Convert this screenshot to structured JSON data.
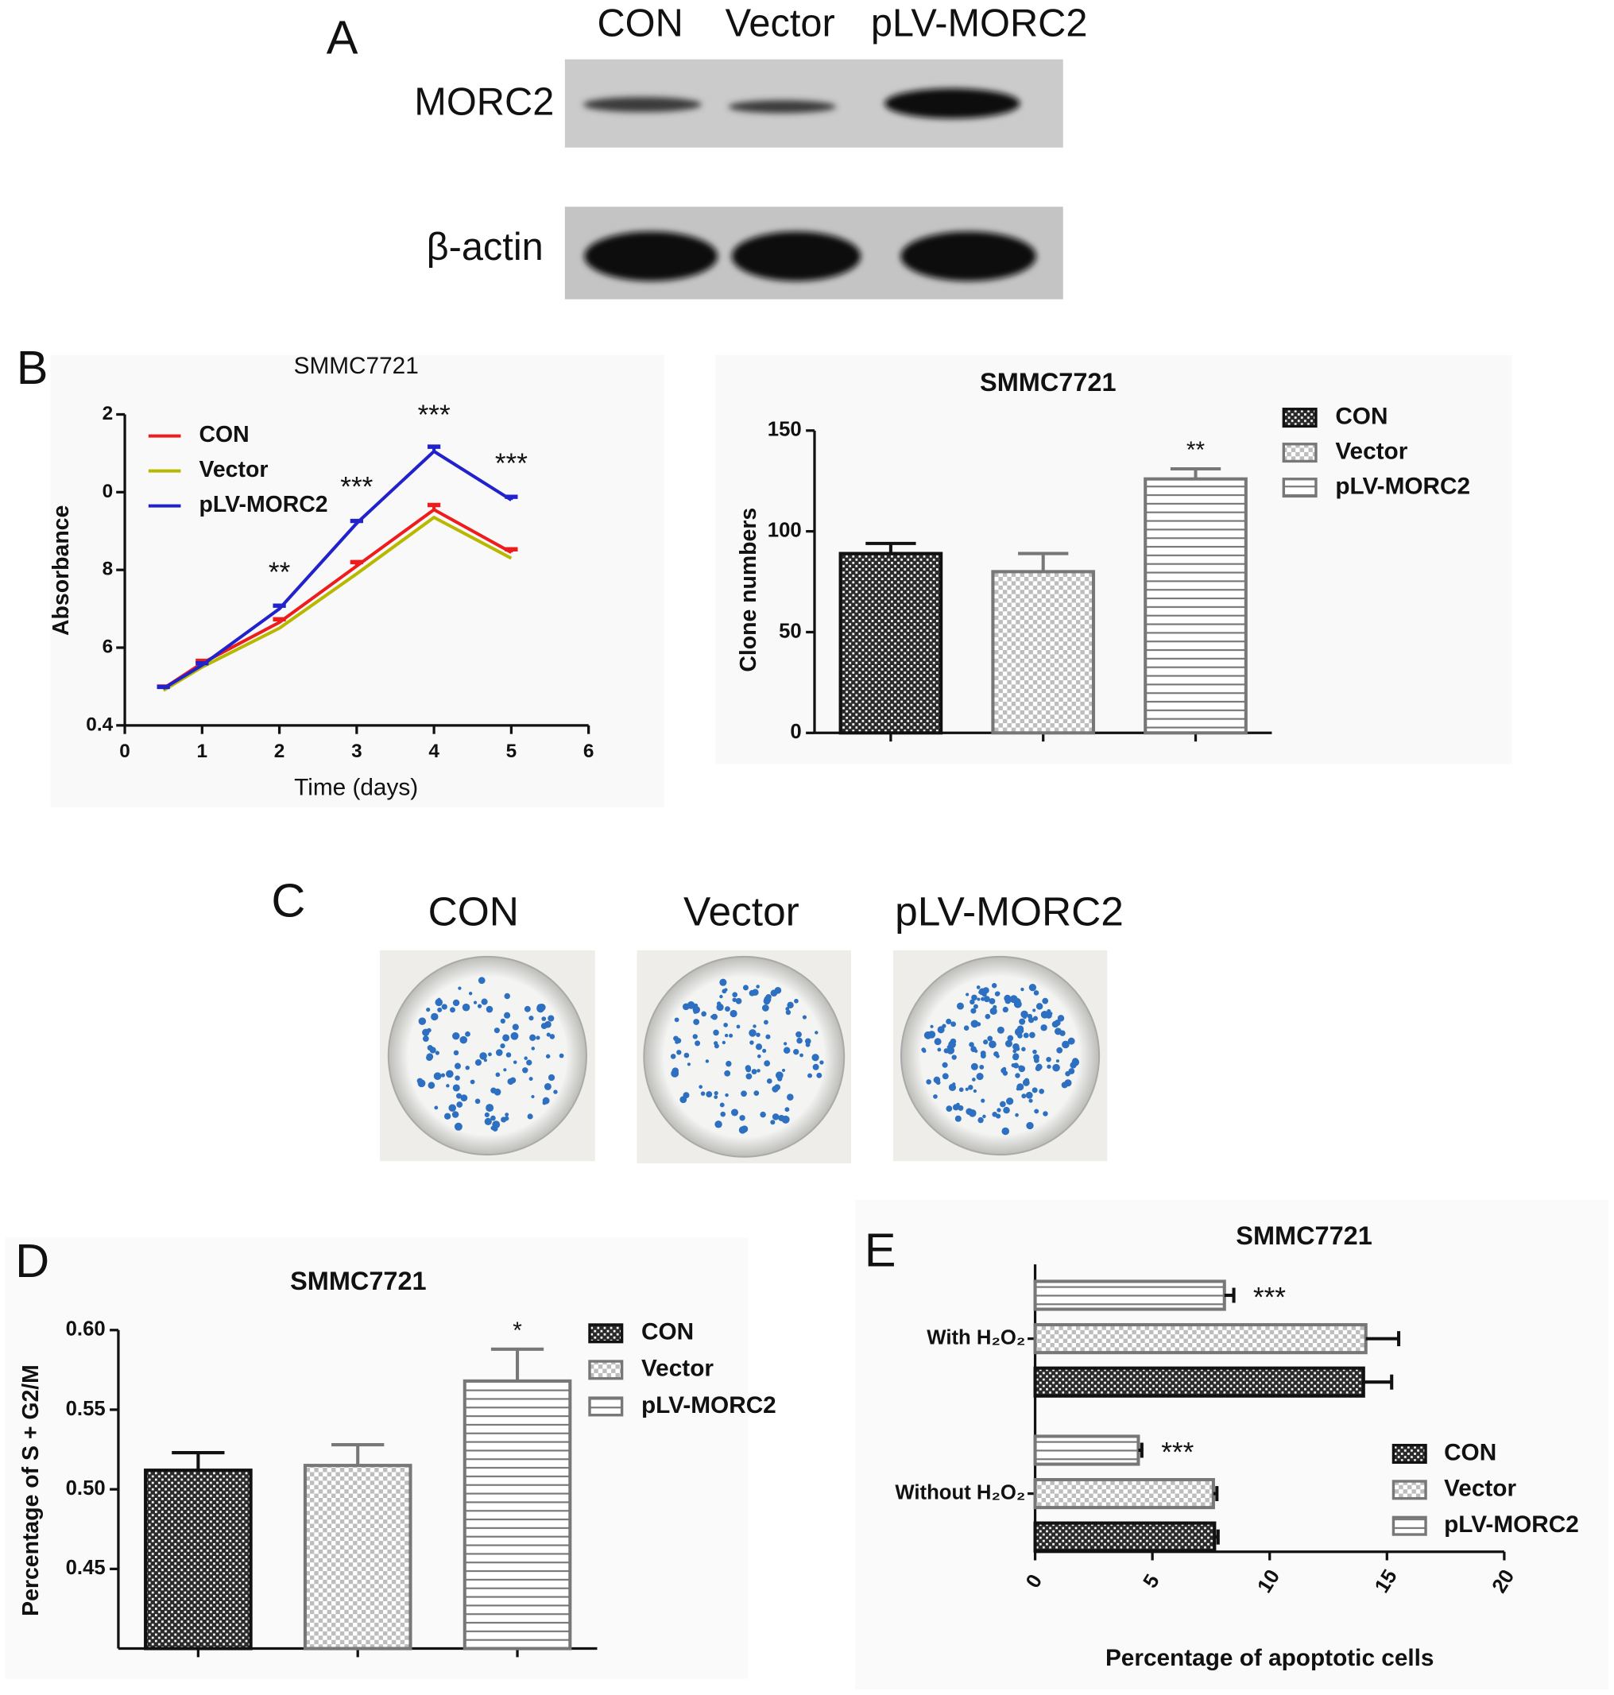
{
  "panel_labels": [
    "A",
    "B",
    "C",
    "D",
    "E"
  ],
  "western_blot": {
    "lanes": [
      "CON",
      "Vector",
      "pLV-MORC2"
    ],
    "rows": [
      "MORC2",
      "β-actin"
    ]
  },
  "colony_plates": {
    "labels": [
      "CON",
      "Vector",
      "pLV-MORC2"
    ]
  },
  "chart_data": [
    {
      "type": "line",
      "title": "SMMC7721",
      "xlabel": "Time (days)",
      "ylabel": "Absorbance",
      "x": [
        0.5,
        1,
        2,
        3,
        4,
        5
      ],
      "xlim": [
        0,
        6
      ],
      "xticks": [
        0,
        1,
        2,
        3,
        4,
        5,
        6
      ],
      "ylim": [
        0.4,
        1.2
      ],
      "yticks": [
        0.4,
        {
          "value": 0.6,
          "label": "6"
        },
        {
          "value": 0.8,
          "label": "8"
        },
        {
          "value": 1.0,
          "label": "0"
        },
        {
          "value": 1.2,
          "label": "2"
        }
      ],
      "series": [
        {
          "name": "CON",
          "color": "#ee1c1c",
          "values": [
            0.495,
            0.56,
            0.665,
            0.81,
            0.955,
            0.845
          ],
          "errors": [
            0.005,
            0.006,
            0.008,
            0.01,
            0.012,
            0.008
          ]
        },
        {
          "name": "Vector",
          "color": "#b8b800",
          "values": [
            0.49,
            0.55,
            0.65,
            0.79,
            0.935,
            0.83
          ]
        },
        {
          "name": "pLV-MORC2",
          "color": "#2222cc",
          "values": [
            0.495,
            0.555,
            0.7,
            0.92,
            1.105,
            0.98
          ],
          "errors": [
            0.004,
            0.005,
            0.008,
            0.006,
            0.012,
            0.008
          ]
        }
      ],
      "annotations": [
        {
          "text": "**",
          "x": 2
        },
        {
          "text": "***",
          "x": 3
        },
        {
          "text": "***",
          "x": 4
        },
        {
          "text": "***",
          "x": 5
        }
      ],
      "legend": "upper left"
    },
    {
      "type": "bar",
      "title": "SMMC7721",
      "ylabel": "Clone numbers",
      "categories": [
        null
      ],
      "ylim": [
        0,
        150
      ],
      "yticks": [
        0,
        50,
        100,
        150
      ],
      "series": [
        {
          "name": "CON",
          "pattern": "checker-dark",
          "values": [
            89
          ],
          "errors": [
            5
          ]
        },
        {
          "name": "Vector",
          "pattern": "checker-light",
          "values": [
            80
          ],
          "errors": [
            9
          ]
        },
        {
          "name": "pLV-MORC2",
          "pattern": "hlines",
          "values": [
            126
          ],
          "errors": [
            5
          ]
        }
      ],
      "annotations": [
        {
          "text": "**",
          "series": 2,
          "category": 0
        }
      ],
      "legend": "upper right"
    },
    {
      "type": "bar",
      "title": "SMMC7721",
      "ylabel": "Percentage of S + G2/M",
      "categories": [
        null
      ],
      "ylim": [
        0.4,
        0.6
      ],
      "yticks": [
        0.45,
        {
          "value": 0.5,
          "label": "0.50"
        },
        0.55,
        {
          "value": 0.6,
          "label": "0.60"
        }
      ],
      "series": [
        {
          "name": "CON",
          "pattern": "checker-dark",
          "values": [
            0.512
          ],
          "errors": [
            0.011
          ]
        },
        {
          "name": "Vector",
          "pattern": "checker-light",
          "values": [
            0.515
          ],
          "errors": [
            0.013
          ]
        },
        {
          "name": "pLV-MORC2",
          "pattern": "hlines",
          "values": [
            0.568
          ],
          "errors": [
            0.02
          ]
        }
      ],
      "annotations": [
        {
          "text": "*",
          "series": 2,
          "category": 0
        }
      ],
      "legend": "upper right"
    },
    {
      "type": "barh",
      "title": "SMMC7721",
      "xlabel": "Percentage of apoptotic cells",
      "categories": [
        "With H₂O₂",
        "Without H₂O₂"
      ],
      "xlim": [
        0,
        20
      ],
      "xticks": [
        0,
        5,
        10,
        15,
        20
      ],
      "series": [
        {
          "name": "CON",
          "pattern": "checker-dark",
          "values": [
            14.0,
            7.65
          ],
          "errors": [
            1.2,
            0.15
          ]
        },
        {
          "name": "Vector",
          "pattern": "checker-light",
          "values": [
            14.1,
            7.6
          ],
          "errors": [
            1.4,
            0.15
          ]
        },
        {
          "name": "pLV-MORC2",
          "pattern": "hlines",
          "values": [
            8.07,
            4.4
          ],
          "errors": [
            0.4,
            0.15
          ]
        }
      ],
      "annotations": [
        {
          "text": "***",
          "series": 2,
          "category": 0
        },
        {
          "text": "***",
          "series": 2,
          "category": 1
        }
      ],
      "legend": "lower right"
    }
  ]
}
